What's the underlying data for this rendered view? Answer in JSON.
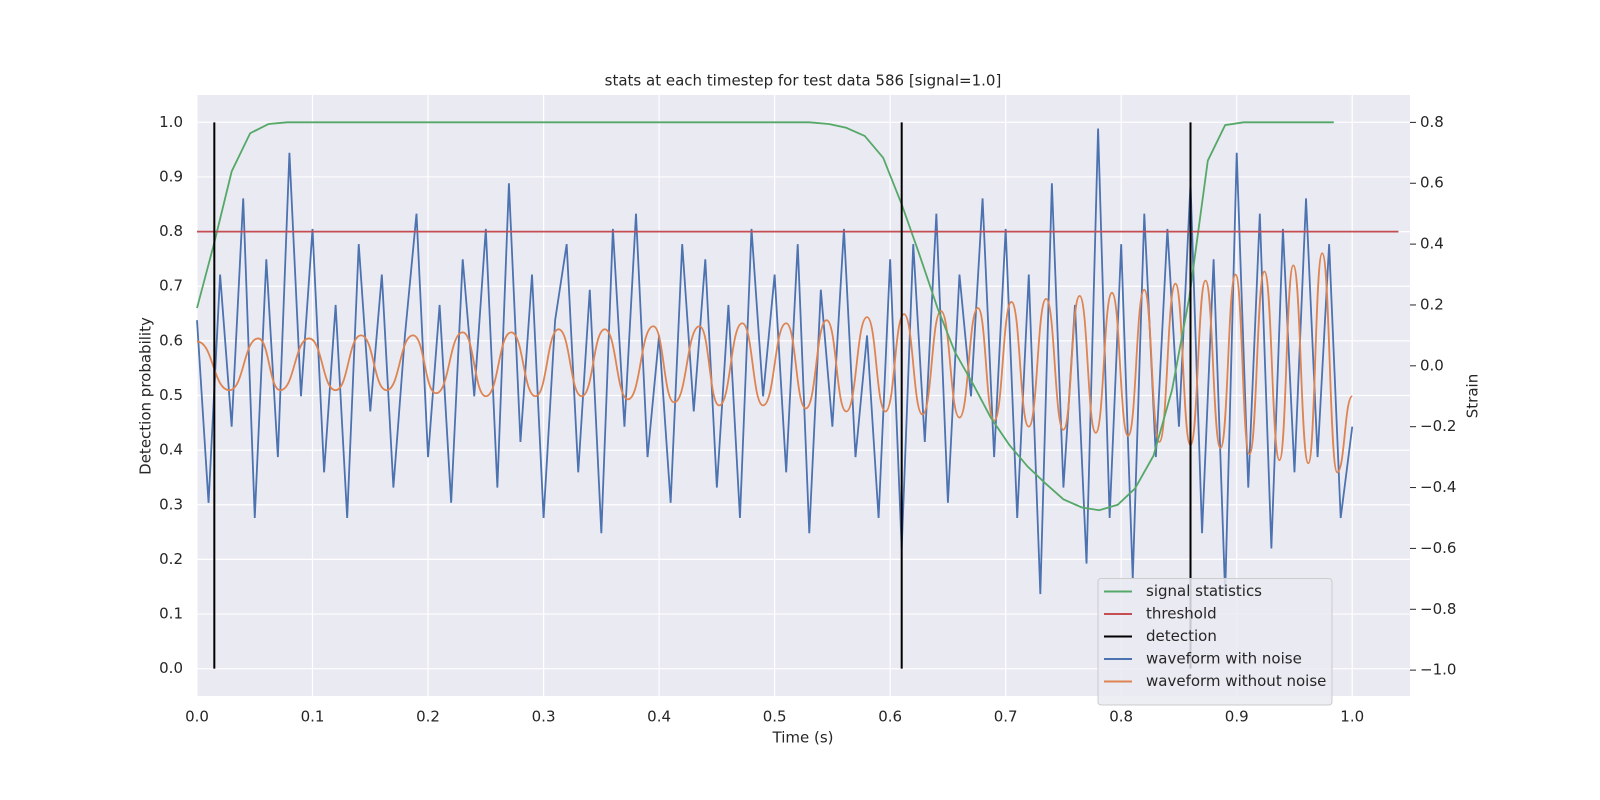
{
  "chart_data": {
    "type": "line",
    "title": "stats at each timestep for test data 586 [signal=1.0]",
    "x_label": "Time (s)",
    "y_label": "Detection probability",
    "y2_label": "Strain",
    "xlim": [
      0,
      1.05
    ],
    "ylim": [
      -0.05,
      1.05
    ],
    "y2lim": [
      -1.085,
      0.89
    ],
    "xticks": [
      {
        "value": 0,
        "label": "0.0"
      },
      0.1,
      0.2,
      0.3,
      0.4,
      0.5,
      0.6,
      0.7,
      0.8,
      0.9,
      {
        "value": 1,
        "label": "1.0"
      }
    ],
    "yticks": [
      {
        "value": 0,
        "label": "0.0"
      },
      0.1,
      0.2,
      0.3,
      0.4,
      0.5,
      0.6,
      0.7,
      0.8,
      0.9,
      {
        "value": 1,
        "label": "1.0"
      }
    ],
    "y2ticks": [
      {
        "value": -1,
        "label": "−1.0"
      },
      {
        "value": -0.8,
        "label": "−0.8"
      },
      {
        "value": -0.6,
        "label": "−0.6"
      },
      {
        "value": -0.4,
        "label": "−0.4"
      },
      {
        "value": -0.2,
        "label": "−0.2"
      },
      {
        "value": 0,
        "label": "0.0"
      },
      0.2,
      0.4,
      0.6,
      0.8
    ],
    "grid": true,
    "legend": "lower right",
    "series": [
      {
        "name": "signal statistics",
        "color": "#55a868",
        "x": [
          0,
          0.015,
          0.03,
          0.046,
          0.062,
          0.078,
          0.53,
          0.547,
          0.562,
          0.578,
          0.594,
          0.61,
          0.625,
          0.641,
          0.656,
          0.672,
          0.687,
          0.703,
          0.719,
          0.734,
          0.75,
          0.766,
          0.781,
          0.797,
          0.812,
          0.828,
          0.844,
          0.859,
          0.875,
          0.89,
          0.906,
          0.984
        ],
        "values": [
          0.66,
          0.78,
          0.91,
          0.98,
          0.997,
          1,
          1,
          0.997,
          0.99,
          0.975,
          0.935,
          0.85,
          0.76,
          0.66,
          0.58,
          0.52,
          0.46,
          0.41,
          0.37,
          0.34,
          0.31,
          0.295,
          0.29,
          0.3,
          0.33,
          0.39,
          0.51,
          0.68,
          0.93,
          0.995,
          1,
          1
        ]
      },
      {
        "name": "threshold",
        "color": "#c44e52",
        "x": [
          0,
          1.04
        ],
        "values": [
          0.8,
          0.8
        ]
      },
      {
        "name": "detection",
        "color": "#000000",
        "x": [
          0.015,
          0.61,
          0.86
        ],
        "span": [
          0,
          1
        ]
      },
      {
        "name": "waveform with noise",
        "color": "#4c72b0",
        "axis": "y2",
        "x": [
          0,
          0.01,
          0.02,
          0.03,
          0.04,
          0.05,
          0.06,
          0.07,
          0.08,
          0.09,
          0.1,
          0.11,
          0.12,
          0.13,
          0.14,
          0.15,
          0.16,
          0.17,
          0.18,
          0.19,
          0.2,
          0.21,
          0.22,
          0.23,
          0.24,
          0.25,
          0.26,
          0.27,
          0.28,
          0.29,
          0.3,
          0.31,
          0.32,
          0.33,
          0.34,
          0.35,
          0.36,
          0.37,
          0.38,
          0.39,
          0.4,
          0.41,
          0.42,
          0.43,
          0.44,
          0.45,
          0.46,
          0.47,
          0.48,
          0.49,
          0.5,
          0.51,
          0.52,
          0.53,
          0.54,
          0.55,
          0.56,
          0.57,
          0.58,
          0.59,
          0.6,
          0.61,
          0.62,
          0.63,
          0.64,
          0.65,
          0.66,
          0.67,
          0.68,
          0.69,
          0.7,
          0.71,
          0.72,
          0.73,
          0.74,
          0.75,
          0.76,
          0.77,
          0.78,
          0.79,
          0.8,
          0.81,
          0.82,
          0.83,
          0.84,
          0.85,
          0.86,
          0.87,
          0.88,
          0.89,
          0.9,
          0.91,
          0.92,
          0.93,
          0.94,
          0.95,
          0.96,
          0.97,
          0.98,
          0.99,
          1
        ],
        "values": [
          0.15,
          -0.45,
          0.3,
          -0.2,
          0.55,
          -0.5,
          0.35,
          -0.3,
          0.7,
          -0.1,
          0.45,
          -0.35,
          0.2,
          -0.5,
          0.4,
          -0.15,
          0.3,
          -0.4,
          0.1,
          0.5,
          -0.3,
          0.2,
          -0.45,
          0.35,
          -0.1,
          0.45,
          -0.4,
          0.6,
          -0.25,
          0.3,
          -0.5,
          0.15,
          0.4,
          -0.35,
          0.25,
          -0.55,
          0.45,
          -0.2,
          0.5,
          -0.3,
          0.1,
          -0.45,
          0.4,
          -0.15,
          0.35,
          -0.4,
          0.2,
          -0.5,
          0.45,
          -0.1,
          0.3,
          -0.35,
          0.4,
          -0.55,
          0.25,
          -0.2,
          0.45,
          -0.3,
          0.1,
          -0.5,
          0.35,
          -0.6,
          0.4,
          -0.25,
          0.5,
          -0.45,
          0.3,
          -0.1,
          0.55,
          -0.3,
          0.45,
          -0.5,
          0.3,
          -0.75,
          0.6,
          -0.4,
          0.2,
          -0.65,
          0.78,
          -0.5,
          0.4,
          -0.7,
          0.5,
          -0.3,
          0.45,
          -0.2,
          0.6,
          -0.55,
          0.35,
          -0.75,
          0.7,
          -0.4,
          0.5,
          -0.6,
          0.45,
          -0.35,
          0.55,
          -0.3,
          0.4,
          -0.5,
          -0.2
        ]
      },
      {
        "name": "waveform without noise",
        "color": "#dd8452",
        "axis": "y2",
        "smooth": true,
        "x": [
          0,
          0.028,
          0.053,
          0.072,
          0.097,
          0.12,
          0.142,
          0.164,
          0.187,
          0.207,
          0.23,
          0.25,
          0.272,
          0.293,
          0.313,
          0.333,
          0.353,
          0.373,
          0.395,
          0.413,
          0.435,
          0.452,
          0.472,
          0.49,
          0.51,
          0.527,
          0.545,
          0.562,
          0.58,
          0.596,
          0.612,
          0.628,
          0.644,
          0.66,
          0.676,
          0.69,
          0.705,
          0.72,
          0.735,
          0.75,
          0.764,
          0.778,
          0.792,
          0.806,
          0.82,
          0.833,
          0.847,
          0.86,
          0.873,
          0.886,
          0.899,
          0.911,
          0.924,
          0.937,
          0.949,
          0.962,
          0.974,
          0.987,
          1
        ],
        "values": [
          0.08,
          -0.08,
          0.09,
          -0.08,
          0.09,
          -0.08,
          0.1,
          -0.08,
          0.1,
          -0.09,
          0.11,
          -0.1,
          0.11,
          -0.1,
          0.12,
          -0.1,
          0.12,
          -0.11,
          0.13,
          -0.12,
          0.13,
          -0.13,
          0.14,
          -0.13,
          0.14,
          -0.14,
          0.15,
          -0.15,
          0.16,
          -0.15,
          0.17,
          -0.16,
          0.18,
          -0.17,
          0.19,
          -0.18,
          0.21,
          -0.2,
          0.22,
          -0.21,
          0.23,
          -0.22,
          0.24,
          -0.23,
          0.25,
          -0.25,
          0.27,
          -0.26,
          0.28,
          -0.27,
          0.3,
          -0.29,
          0.31,
          -0.31,
          0.33,
          -0.32,
          0.37,
          -0.35,
          -0.1
        ]
      }
    ]
  }
}
